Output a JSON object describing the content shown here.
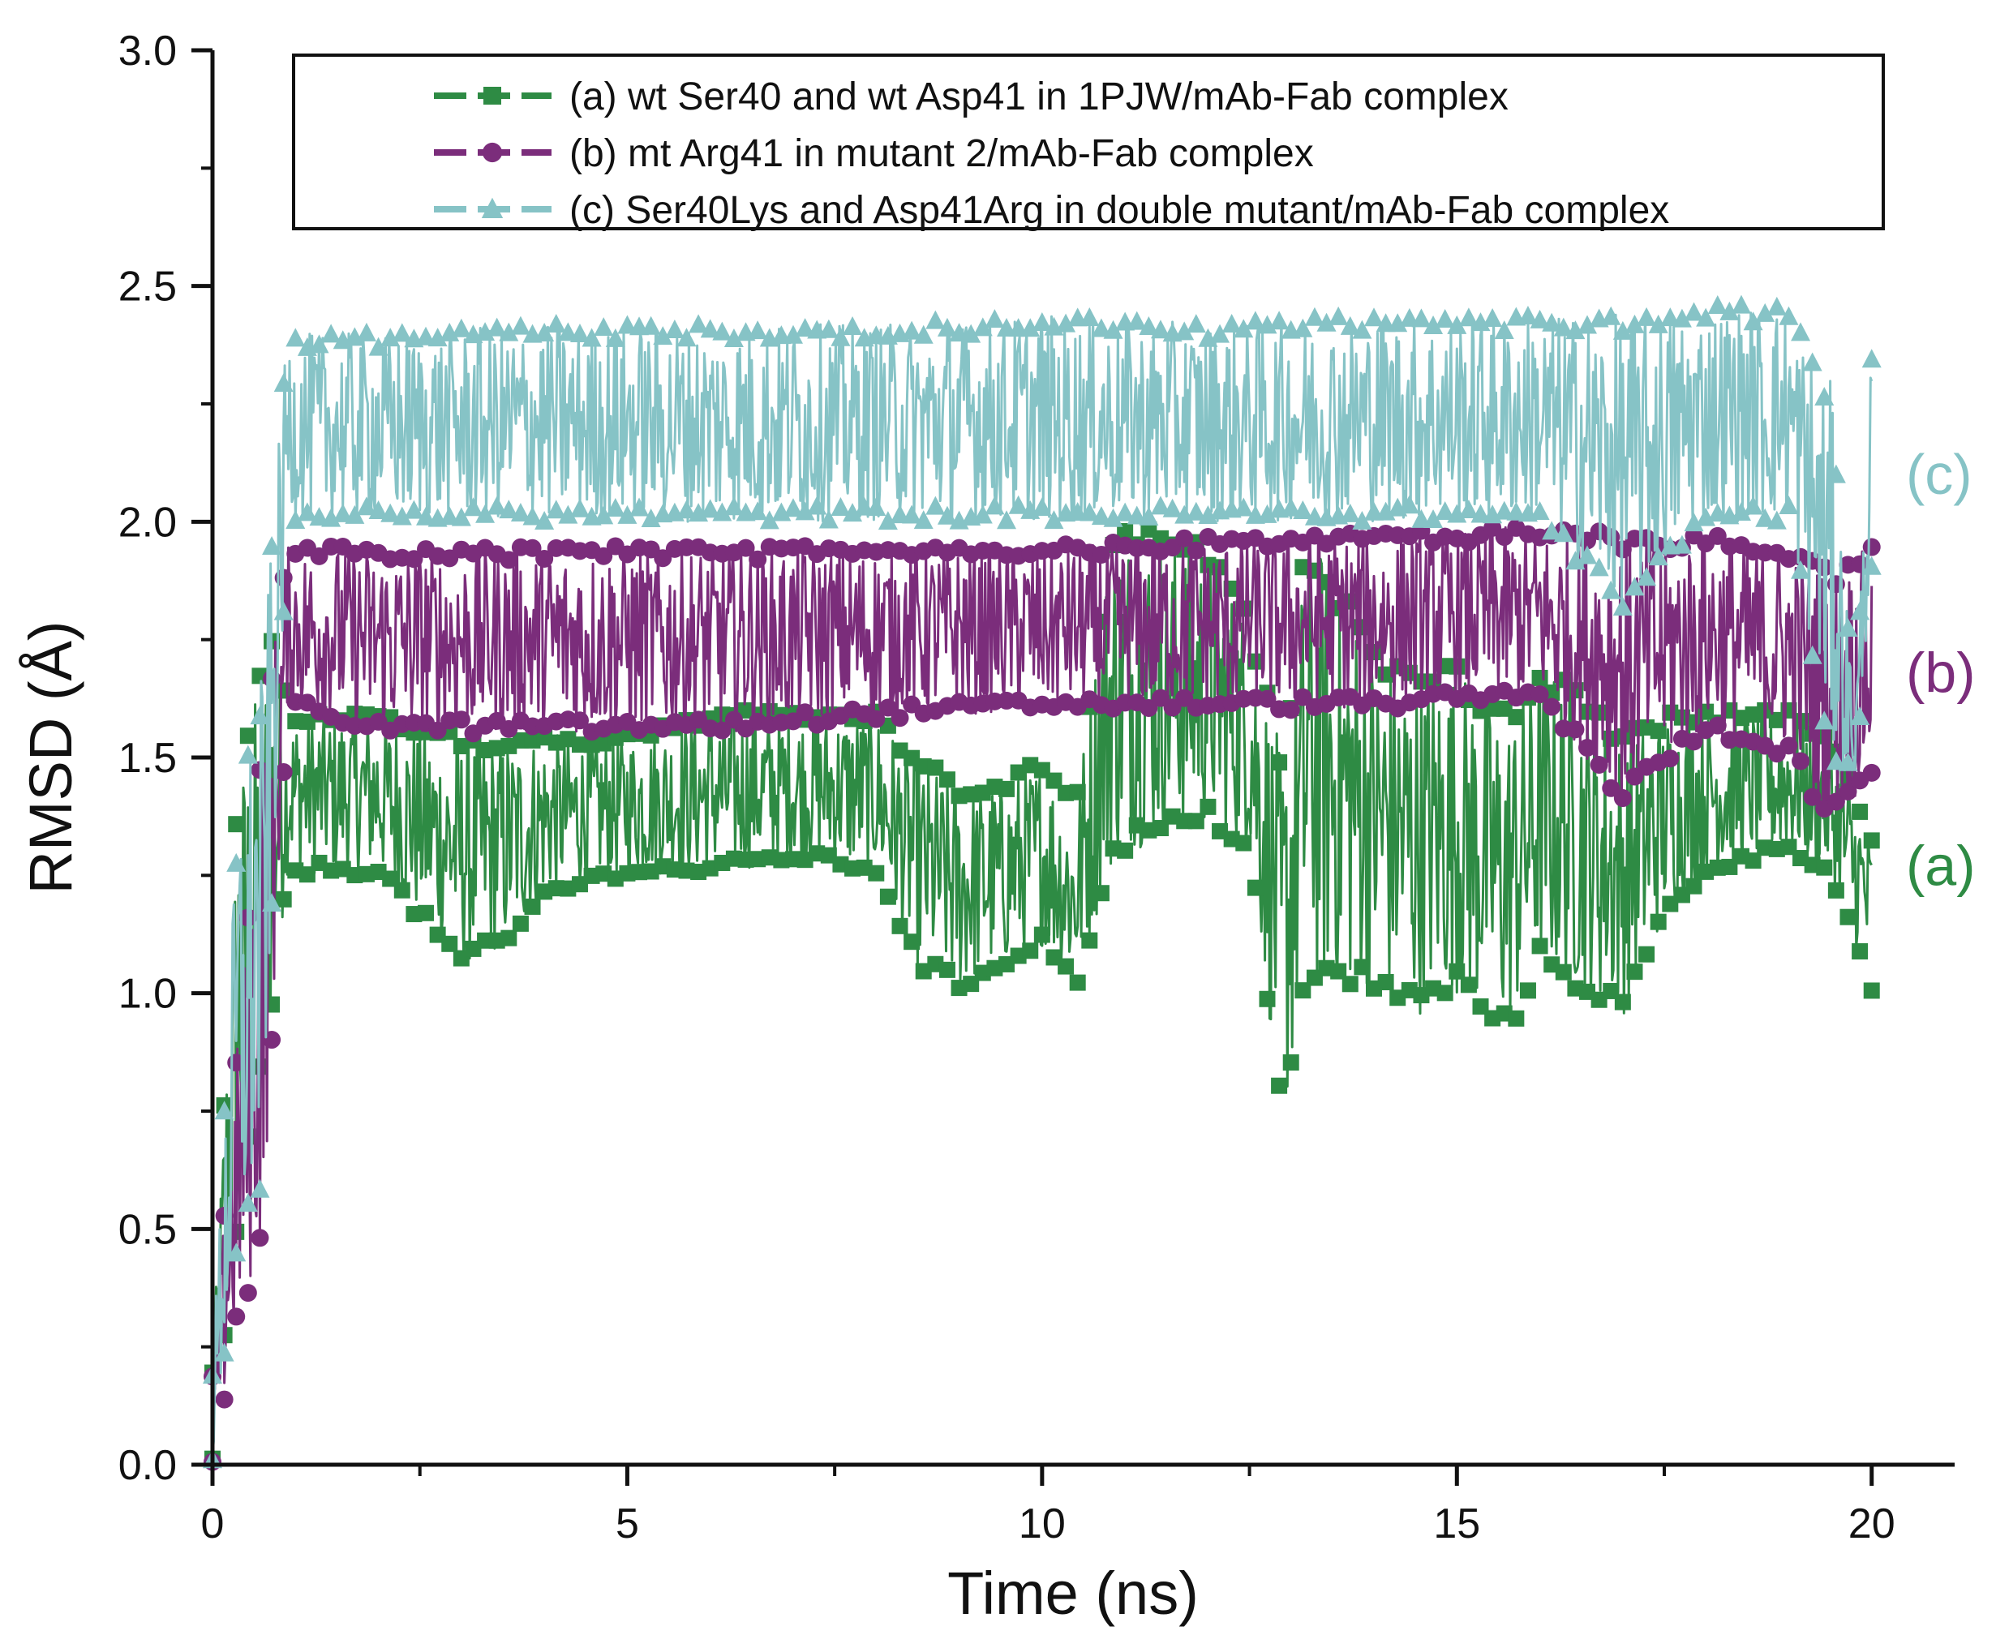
{
  "chart_data": {
    "type": "line",
    "xlabel": "Time (ns)",
    "ylabel": "RMSD (Å)",
    "xlim": [
      0,
      21
    ],
    "ylim": [
      0,
      3.0
    ],
    "x_ticks": [
      0,
      5,
      10,
      15,
      20
    ],
    "y_ticks": [
      0.0,
      0.5,
      1.0,
      1.5,
      2.0,
      2.5,
      3.0
    ],
    "x_tick_labels": [
      "0",
      "5",
      "10",
      "15",
      "20"
    ],
    "y_tick_labels": [
      "0.0",
      "0.5",
      "1.0",
      "1.5",
      "2.0",
      "2.5",
      "3.0"
    ],
    "legend_position": "top",
    "series": [
      {
        "id": "a",
        "name": "(a) wt Ser40 and wt Asp41 in 1PJW/mAb-Fab complex",
        "tag": "(a)",
        "color": "#2e8b44",
        "marker": "square",
        "x": [
          0,
          0.3,
          0.7,
          0.9,
          2,
          3,
          3.6,
          4,
          5,
          6,
          7,
          8,
          8.5,
          9,
          9.5,
          10,
          10.4,
          10.8,
          11,
          12,
          12.5,
          12.9,
          13.2,
          14,
          14.5,
          15,
          15.6,
          16,
          16.5,
          17,
          17.5,
          18,
          19,
          19.5,
          20
        ],
        "lo": [
          0,
          0.5,
          0.9,
          1.25,
          1.25,
          1.05,
          1.1,
          1.2,
          1.25,
          1.25,
          1.28,
          1.25,
          1.05,
          1.0,
          1.05,
          1.1,
          1.0,
          1.25,
          1.3,
          1.35,
          1.3,
          0.7,
          1.0,
          1.0,
          0.95,
          1.0,
          0.9,
          1.05,
          1.0,
          0.95,
          1.15,
          1.25,
          1.3,
          1.25,
          1.0
        ],
        "hi": [
          0.2,
          1.45,
          1.8,
          1.6,
          1.6,
          1.55,
          1.55,
          1.55,
          1.55,
          1.6,
          1.6,
          1.6,
          1.5,
          1.45,
          1.45,
          1.5,
          1.4,
          1.95,
          2.0,
          1.95,
          1.8,
          1.5,
          2.0,
          1.75,
          1.7,
          1.7,
          1.6,
          1.7,
          1.65,
          1.55,
          1.6,
          1.6,
          1.6,
          1.55,
          1.35
        ]
      },
      {
        "id": "b",
        "name": "(b) mt Arg41 in mutant 2/mAb-Fab complex",
        "tag": "(b)",
        "color": "#7b2d7b",
        "marker": "circle",
        "x": [
          0,
          0.3,
          0.6,
          0.9,
          2,
          4,
          6,
          8,
          10,
          12,
          14,
          16,
          17,
          18,
          19,
          19.5,
          20
        ],
        "lo": [
          0,
          0.28,
          0.45,
          1.6,
          1.55,
          1.55,
          1.55,
          1.58,
          1.6,
          1.6,
          1.6,
          1.62,
          1.4,
          1.55,
          1.5,
          1.35,
          1.45
        ],
        "hi": [
          0.2,
          0.9,
          1.6,
          1.95,
          1.95,
          1.95,
          1.95,
          1.95,
          1.95,
          1.97,
          1.98,
          1.99,
          1.98,
          1.98,
          1.95,
          1.9,
          1.95
        ]
      },
      {
        "id": "c",
        "name": "(c) Ser40Lys and Asp41Arg in double mutant/mAb-Fab complex",
        "tag": "(c)",
        "color": "#86c3c6",
        "marker": "triangle",
        "x": [
          0,
          0.3,
          0.6,
          0.9,
          2,
          4,
          6,
          8,
          10,
          12,
          14,
          16,
          17,
          18,
          19,
          19.5,
          19.8,
          20
        ],
        "lo": [
          0,
          0.4,
          0.6,
          2.0,
          2.0,
          2.0,
          2.0,
          2.0,
          2.0,
          2.0,
          2.0,
          2.0,
          1.8,
          2.0,
          2.0,
          1.5,
          1.45,
          1.9
        ],
        "hi": [
          0.2,
          1.4,
          1.7,
          2.4,
          2.4,
          2.42,
          2.42,
          2.42,
          2.44,
          2.42,
          2.44,
          2.44,
          2.44,
          2.46,
          2.46,
          2.3,
          1.6,
          2.38
        ]
      }
    ]
  }
}
